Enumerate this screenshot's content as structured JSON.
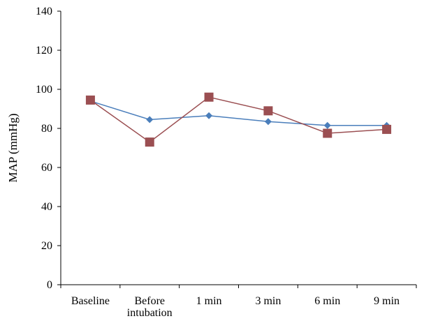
{
  "chart_data": {
    "type": "line",
    "title": "",
    "xlabel": "",
    "ylabel": "MAP (mmHg)",
    "ylim": [
      0,
      140
    ],
    "yticks": [
      0,
      20,
      40,
      60,
      80,
      100,
      120,
      140
    ],
    "categories": [
      [
        "Baseline"
      ],
      [
        "Before",
        "intubation"
      ],
      [
        "1 min"
      ],
      [
        "3 min"
      ],
      [
        "6 min"
      ],
      [
        "9 min"
      ]
    ],
    "grid": false,
    "legend": "none",
    "series": [
      {
        "color": "#4a7ebb",
        "marker": "diamond",
        "values": [
          94,
          84.5,
          86.5,
          83.5,
          81.5,
          81.5
        ]
      },
      {
        "color": "#9b4f52",
        "marker": "square",
        "values": [
          94.5,
          73,
          96,
          89,
          77.5,
          79.5
        ]
      }
    ]
  }
}
